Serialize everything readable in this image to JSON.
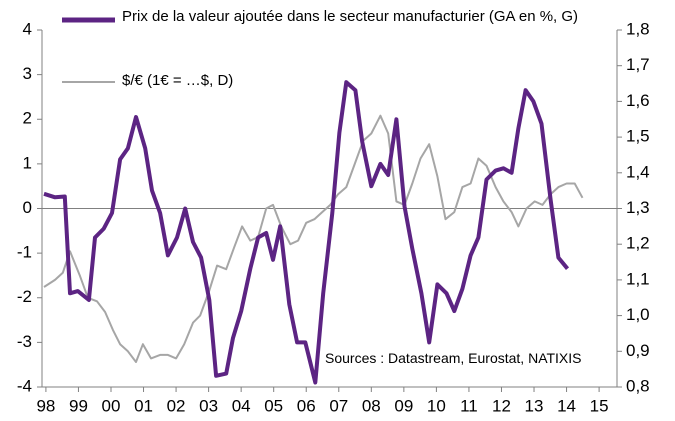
{
  "chart_data": {
    "type": "line",
    "xlim": [
      1997.88,
      2015.55
    ],
    "xticks": [
      {
        "value": 1998,
        "label": "98"
      },
      {
        "value": 1999,
        "label": "99"
      },
      {
        "value": 2000,
        "label": "00"
      },
      {
        "value": 2001,
        "label": "01"
      },
      {
        "value": 2002,
        "label": "02"
      },
      {
        "value": 2003,
        "label": "03"
      },
      {
        "value": 2004,
        "label": "04"
      },
      {
        "value": 2005,
        "label": "05"
      },
      {
        "value": 2006,
        "label": "06"
      },
      {
        "value": 2007,
        "label": "07"
      },
      {
        "value": 2008,
        "label": "08"
      },
      {
        "value": 2009,
        "label": "09"
      },
      {
        "value": 2010,
        "label": "10"
      },
      {
        "value": 2011,
        "label": "11"
      },
      {
        "value": 2012,
        "label": "12"
      },
      {
        "value": 2013,
        "label": "13"
      },
      {
        "value": 2014,
        "label": "14"
      },
      {
        "value": 2015,
        "label": "15"
      }
    ],
    "ylim": [
      -4,
      4
    ],
    "yticks": [
      -4,
      -3,
      -2,
      -1,
      0,
      1,
      2,
      3,
      4
    ],
    "y2lim": [
      0.8,
      1.8
    ],
    "y2ticks": [
      {
        "value": 0.8,
        "label": "0,8"
      },
      {
        "value": 0.9,
        "label": "0,9"
      },
      {
        "value": 1.0,
        "label": "1,0"
      },
      {
        "value": 1.1,
        "label": "1,1"
      },
      {
        "value": 1.2,
        "label": "1,2"
      },
      {
        "value": 1.3,
        "label": "1,3"
      },
      {
        "value": 1.4,
        "label": "1,4"
      },
      {
        "value": 1.5,
        "label": "1,5"
      },
      {
        "value": 1.6,
        "label": "1,6"
      },
      {
        "value": 1.7,
        "label": "1,7"
      },
      {
        "value": 1.8,
        "label": "1,8"
      }
    ],
    "annotation": "Sources : Datastream, Eurostat, NATIXIS",
    "series": [
      {
        "name": "Prix de la valeur ajoutée dans le secteur manufacturier (GA en %, G)",
        "color": "#5c2483",
        "axis": "y",
        "x": [
          1997.94,
          1998.28,
          1998.58,
          1998.74,
          1998.98,
          1999.32,
          1999.51,
          1999.78,
          2000.03,
          2000.28,
          2000.52,
          2000.77,
          2001.05,
          2001.26,
          2001.51,
          2001.75,
          2002.03,
          2002.28,
          2002.52,
          2002.77,
          2003.02,
          2003.23,
          2003.54,
          2003.75,
          2004.0,
          2004.28,
          2004.52,
          2004.77,
          2004.98,
          2005.2,
          2005.48,
          2005.72,
          2005.97,
          2006.28,
          2006.52,
          2006.8,
          2007.02,
          2007.23,
          2007.51,
          2007.72,
          2008.0,
          2008.28,
          2008.52,
          2008.77,
          2009.02,
          2009.26,
          2009.54,
          2009.78,
          2010.03,
          2010.31,
          2010.55,
          2010.8,
          2011.05,
          2011.29,
          2011.54,
          2011.82,
          2012.06,
          2012.31,
          2012.52,
          2012.74,
          2012.98,
          2013.23,
          2013.51,
          2013.75,
          2014.03
        ],
        "values": [
          0.33,
          0.25,
          0.27,
          -1.9,
          -1.85,
          -2.05,
          -0.65,
          -0.45,
          -0.1,
          1.1,
          1.35,
          2.05,
          1.35,
          0.4,
          -0.1,
          -1.05,
          -0.65,
          0,
          -0.75,
          -1.1,
          -2.05,
          -3.75,
          -3.7,
          -2.9,
          -2.3,
          -1.35,
          -0.65,
          -0.55,
          -1.15,
          -0.4,
          -2.15,
          -3.0,
          -3.0,
          -3.9,
          -1.9,
          -0.1,
          1.7,
          2.83,
          2.65,
          1.5,
          0.5,
          1.0,
          0.75,
          2.0,
          0.05,
          -0.9,
          -1.9,
          -3.0,
          -1.7,
          -1.9,
          -2.3,
          -1.8,
          -1.05,
          -0.65,
          0.65,
          0.85,
          0.9,
          0.8,
          1.8,
          2.65,
          2.4,
          1.9,
          0.2,
          -1.1,
          -1.35
        ]
      },
      {
        "name": "$/€ (1€ = …$, D)",
        "color": "#a6a6a6",
        "axis": "y2",
        "x": [
          1997.94,
          1998.28,
          1998.52,
          1998.74,
          1999.05,
          1999.29,
          1999.57,
          1999.82,
          2000.06,
          2000.28,
          2000.52,
          2000.77,
          2000.98,
          2001.23,
          2001.51,
          2001.75,
          2002.0,
          2002.25,
          2002.52,
          2002.74,
          2003.02,
          2003.26,
          2003.54,
          2003.78,
          2004.03,
          2004.28,
          2004.52,
          2004.77,
          2004.98,
          2005.23,
          2005.51,
          2005.75,
          2006.0,
          2006.25,
          2006.49,
          2006.74,
          2006.98,
          2007.23,
          2007.51,
          2007.75,
          2008.0,
          2008.28,
          2008.52,
          2008.77,
          2009.02,
          2009.26,
          2009.51,
          2009.78,
          2010.03,
          2010.28,
          2010.55,
          2010.8,
          2011.05,
          2011.29,
          2011.54,
          2011.82,
          2012.06,
          2012.31,
          2012.52,
          2012.77,
          2013.02,
          2013.26,
          2013.51,
          2013.75,
          2014.0,
          2014.25,
          2014.49
        ],
        "values": [
          1.08,
          1.1,
          1.12,
          1.18,
          1.11,
          1.05,
          1.04,
          1.01,
          0.96,
          0.92,
          0.9,
          0.87,
          0.92,
          0.88,
          0.89,
          0.89,
          0.88,
          0.92,
          0.98,
          1.0,
          1.07,
          1.14,
          1.13,
          1.19,
          1.25,
          1.21,
          1.22,
          1.3,
          1.31,
          1.25,
          1.2,
          1.21,
          1.26,
          1.27,
          1.29,
          1.31,
          1.34,
          1.36,
          1.43,
          1.49,
          1.51,
          1.56,
          1.51,
          1.32,
          1.31,
          1.37,
          1.44,
          1.48,
          1.39,
          1.27,
          1.29,
          1.36,
          1.37,
          1.44,
          1.42,
          1.36,
          1.32,
          1.29,
          1.25,
          1.3,
          1.32,
          1.31,
          1.34,
          1.36,
          1.37,
          1.37,
          1.33
        ]
      }
    ]
  }
}
